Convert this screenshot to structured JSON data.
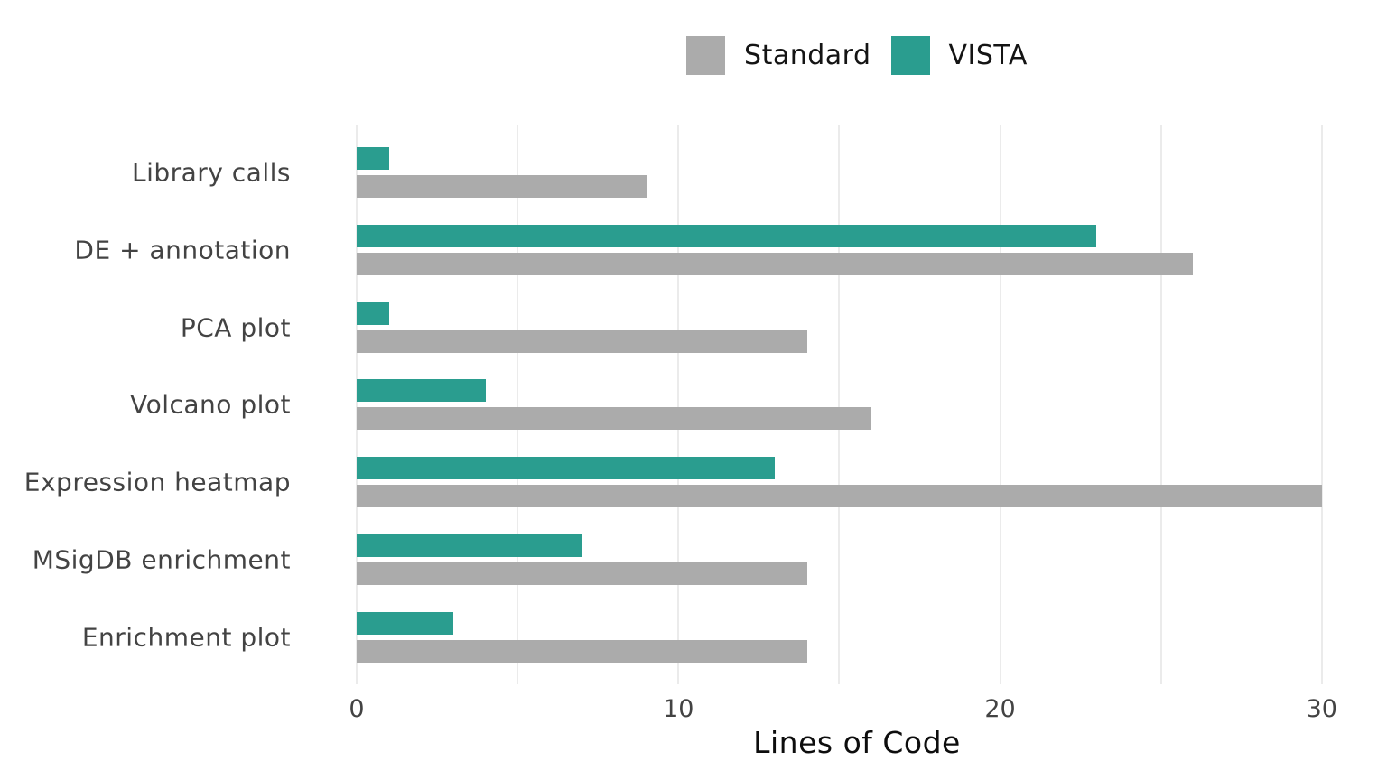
{
  "legend": [
    {
      "label": "Standard",
      "color": "#ababab"
    },
    {
      "label": "VISTA",
      "color": "#2a9d8f"
    }
  ],
  "chart_data": {
    "type": "bar",
    "orientation": "horizontal",
    "title": "",
    "xlabel": "Lines of Code",
    "ylabel": "",
    "categories": [
      "Library calls",
      "DE + annotation",
      "PCA plot",
      "Volcano plot",
      "Expression heatmap",
      "MSigDB enrichment",
      "Enrichment plot"
    ],
    "series": [
      {
        "name": "VISTA",
        "color": "#2a9d8f",
        "values": [
          1,
          23,
          1,
          4,
          13,
          7,
          3
        ]
      },
      {
        "name": "Standard",
        "color": "#ababab",
        "values": [
          9,
          26,
          14,
          16,
          30,
          14,
          14
        ]
      }
    ],
    "xlim": [
      0,
      31.1
    ],
    "xticks": [
      0,
      10,
      20,
      30
    ],
    "gridlines": [
      0,
      5,
      10,
      15,
      20,
      25,
      30
    ],
    "grid": "vertical",
    "legend_position": "top-center",
    "grid_color": "#ebebeb",
    "text_color": "#434343"
  }
}
